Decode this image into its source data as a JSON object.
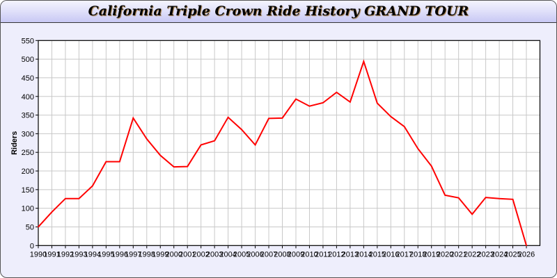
{
  "chart_data": {
    "type": "line",
    "title": "California Triple Crown Ride History GRAND TOUR",
    "xlabel": "",
    "ylabel": "Riders",
    "x": [
      1990,
      1991,
      1992,
      1993,
      1994,
      1995,
      1996,
      1997,
      1998,
      1999,
      2000,
      2001,
      2002,
      2003,
      2004,
      2005,
      2006,
      2007,
      2008,
      2009,
      2010,
      2011,
      2012,
      2013,
      2014,
      2015,
      2016,
      2017,
      2018,
      2019,
      2020,
      2021,
      2022,
      2023,
      2024,
      2025,
      2026
    ],
    "series": [
      {
        "values": [
          50,
          90,
          126,
          126,
          160,
          225,
          225,
          342,
          286,
          242,
          211,
          212,
          270,
          281,
          344,
          311,
          270,
          341,
          342,
          393,
          374,
          383,
          411,
          385,
          494,
          382,
          346,
          319,
          260,
          213,
          135,
          128,
          84,
          129,
          126,
          124,
          0
        ],
        "color": "#ff0000"
      }
    ],
    "xlim": [
      1990,
      2027
    ],
    "ylim": [
      0,
      550
    ],
    "yticks": [
      0,
      50,
      100,
      150,
      200,
      250,
      300,
      350,
      400,
      450,
      500,
      550
    ],
    "grid": true,
    "legend": "none"
  }
}
